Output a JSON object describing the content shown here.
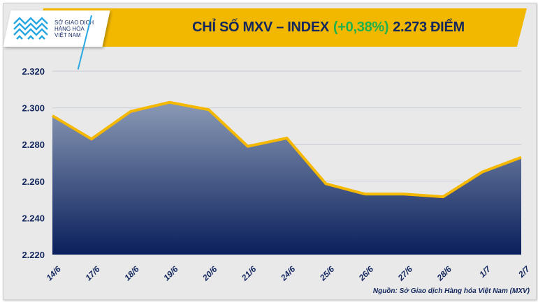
{
  "header": {
    "title_prefix": "CHỈ SỐ MXV – INDEX",
    "title_change": "(+0,38%)",
    "title_suffix": "2.273 ĐIỂM",
    "logo_text": [
      "SỞ GIAO DỊCH",
      "HÀNG HÓA",
      "VIỆT NAM"
    ]
  },
  "source": "Nguồn: Sở Giao dịch Hàng hóa Việt Nam (MXV)",
  "colors": {
    "line": "#f5b800",
    "fill_top": "#8a9ab5",
    "fill_bottom": "#0a1f5c",
    "title": "#13275e",
    "change": "#22b24c",
    "banner": "#f2b800"
  },
  "chart_data": {
    "type": "area",
    "title": "CHỈ SỐ MXV – INDEX (+0,38%) 2.273 ĐIỂM",
    "categories": [
      "14/6",
      "17/6",
      "18/6",
      "19/6",
      "20/6",
      "21/6",
      "24/6",
      "25/6",
      "26/6",
      "27/6",
      "28/6",
      "1/7",
      "2/7"
    ],
    "values": [
      2295.7,
      2283,
      2298,
      2303,
      2299,
      2279,
      2283.5,
      2258.6,
      2253,
      2253,
      2251.5,
      2265,
      2273
    ],
    "ylim": [
      2220,
      2320
    ],
    "yticks": [
      2220,
      2240,
      2260,
      2280,
      2300,
      2320
    ],
    "ytick_labels": [
      "2.220",
      "2.240",
      "2.260",
      "2.280",
      "2.300",
      "2.320"
    ],
    "grid": true,
    "xlabel": "",
    "ylabel": ""
  }
}
